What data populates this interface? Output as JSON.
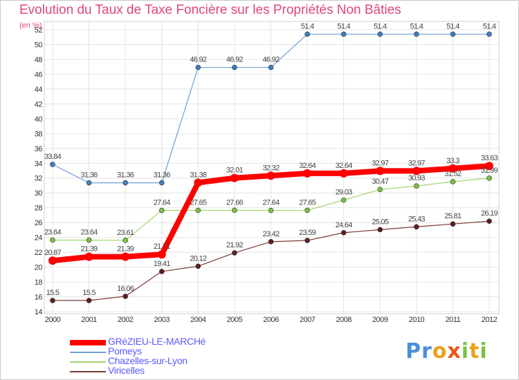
{
  "chart_data": {
    "type": "line",
    "title": "Evolution du Taux de Taxe Foncière sur les Propriétés Non Bâties",
    "ylabel": "(en %)",
    "xlabel": "",
    "ylim": [
      14,
      52
    ],
    "y_ticks": [
      14,
      16,
      18,
      20,
      22,
      24,
      26,
      28,
      30,
      32,
      34,
      36,
      38,
      40,
      42,
      44,
      46,
      48,
      50,
      52
    ],
    "categories": [
      "2000",
      "2001",
      "2002",
      "2003",
      "2004",
      "2005",
      "2006",
      "2007",
      "2008",
      "2009",
      "2010",
      "2011",
      "2012"
    ],
    "grid": true,
    "legend_position": "bottom-left",
    "series": [
      {
        "name": "GRéZIEU-LE-MARCHé",
        "color": "#ff0000",
        "marker_color": "#ff0000",
        "values": [
          20.87,
          21.39,
          21.39,
          21.71,
          31.38,
          32.01,
          32.32,
          32.64,
          32.64,
          32.97,
          32.97,
          33.3,
          33.63
        ],
        "labels": [
          "20.87",
          "21.39",
          "21.39",
          "21.71",
          "31.38",
          "32.01",
          "32.32",
          "32.64",
          "32.64",
          "32.97",
          "32.97",
          "33.3",
          "33.63"
        ]
      },
      {
        "name": "Pomeys",
        "color": "#6f9fd0",
        "marker_color": "#3f7fbf",
        "values": [
          33.84,
          31.36,
          31.36,
          31.36,
          46.92,
          46.92,
          46.92,
          51.4,
          51.4,
          51.4,
          51.4,
          51.4,
          51.4
        ],
        "labels": [
          "33.84",
          "31.36",
          "31.36",
          "31.36",
          "46.92",
          "46.92",
          "46.92",
          "51.4",
          "51.4",
          "51.4",
          "51.4",
          "51.4",
          "51.4"
        ]
      },
      {
        "name": "Chazelles-sur-Lyon",
        "color": "#9ed66a",
        "marker_color": "#7ac142",
        "values": [
          23.64,
          23.64,
          23.61,
          27.64,
          27.65,
          27.66,
          27.64,
          27.65,
          29.03,
          30.47,
          30.93,
          31.52,
          31.99
        ],
        "labels": [
          "23.64",
          "23.64",
          "23.61",
          "27.64",
          "27.65",
          "27.66",
          "27.64",
          "27.65",
          "29.03",
          "30.47",
          "30.93",
          "31.52",
          "31.99"
        ]
      },
      {
        "name": "Viricelles",
        "color": "#7a3838",
        "marker_color": "#5e1e1e",
        "values": [
          15.5,
          15.5,
          16.06,
          19.41,
          20.12,
          21.92,
          23.42,
          23.59,
          24.64,
          25.05,
          25.43,
          25.81,
          26.19
        ],
        "labels": [
          "15.5",
          "15.5",
          "16.06",
          "19.41",
          "20.12",
          "21.92",
          "23.42",
          "23.59",
          "24.64",
          "25.05",
          "25.43",
          "25.81",
          "26.19"
        ]
      }
    ]
  },
  "logo": {
    "text": "Proxiti",
    "colors": [
      "#4a90d9",
      "#4a90d9",
      "#e8a21a",
      "#e85a1a",
      "#7ac142",
      "#e8a21a",
      "#7ac142"
    ]
  }
}
